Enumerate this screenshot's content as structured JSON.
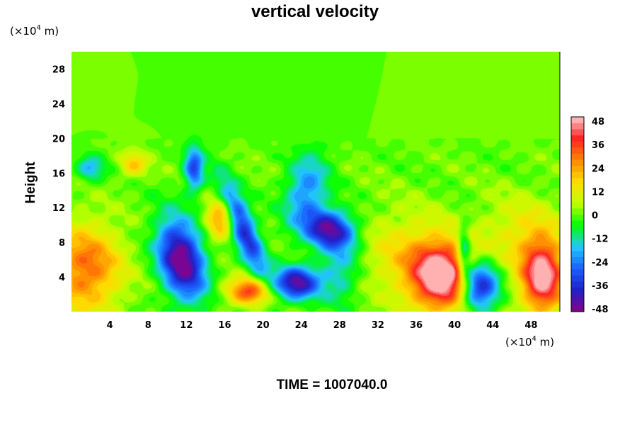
{
  "chart_data": {
    "type": "heatmap",
    "title": "vertical velocity",
    "ylabel": "Height",
    "xlabel": "",
    "x_unit": {
      "text": "(×10",
      "exp": "4",
      "tail": " m)"
    },
    "y_unit": {
      "text": "(×10",
      "exp": "4",
      "tail": " m)"
    },
    "xlim": [
      0,
      51
    ],
    "ylim": [
      0,
      30
    ],
    "x_ticks": [
      4,
      8,
      12,
      16,
      20,
      24,
      28,
      32,
      36,
      40,
      44,
      48
    ],
    "y_ticks": [
      4,
      8,
      12,
      16,
      20,
      24,
      28
    ],
    "colorbar": {
      "range": [
        -48,
        48
      ],
      "ticks": [
        48,
        36,
        24,
        12,
        0,
        -12,
        -24,
        -36,
        -48
      ],
      "colormap": [
        "#8a008a",
        "#2020c8",
        "#1a60ff",
        "#20c8ff",
        "#00ff00",
        "#c0ff00",
        "#ffdd00",
        "#ff8800",
        "#ff2222",
        "#ffc8c8"
      ]
    },
    "background_value": 0,
    "features": [
      {
        "x": 11.5,
        "y": 6.0,
        "sx": 1.6,
        "sy": 3.2,
        "value": -50,
        "rot": -12
      },
      {
        "x": 12.8,
        "y": 16.5,
        "sx": 0.7,
        "sy": 1.8,
        "value": -30,
        "rot": 0
      },
      {
        "x": 18.0,
        "y": 9.5,
        "sx": 0.9,
        "sy": 4.0,
        "value": -36,
        "rot": -20
      },
      {
        "x": 23.5,
        "y": 3.3,
        "sx": 1.6,
        "sy": 1.3,
        "value": -44,
        "rot": 0
      },
      {
        "x": 27.0,
        "y": 9.5,
        "sx": 1.9,
        "sy": 1.5,
        "value": -44,
        "rot": 25
      },
      {
        "x": 24.5,
        "y": 14.0,
        "sx": 1.5,
        "sy": 3.0,
        "value": -22,
        "rot": 10
      },
      {
        "x": 28.0,
        "y": 4.5,
        "sx": 1.5,
        "sy": 2.5,
        "value": -16,
        "rot": 0
      },
      {
        "x": 42.5,
        "y": 3.0,
        "sx": 1.4,
        "sy": 2.0,
        "value": -46,
        "rot": 0
      },
      {
        "x": 41.0,
        "y": 7.0,
        "sx": 0.5,
        "sy": 2.0,
        "value": -25,
        "rot": 0
      },
      {
        "x": 2.0,
        "y": 16.5,
        "sx": 1.0,
        "sy": 1.0,
        "value": -18,
        "rot": 0
      },
      {
        "x": 38.8,
        "y": 4.0,
        "sx": 2.3,
        "sy": 2.7,
        "value": 52,
        "rot": 0
      },
      {
        "x": 49.2,
        "y": 4.0,
        "sx": 1.6,
        "sy": 3.0,
        "value": 48,
        "rot": 0
      },
      {
        "x": 1.5,
        "y": 5.0,
        "sx": 2.6,
        "sy": 3.5,
        "value": 30,
        "rot": 0
      },
      {
        "x": 18.5,
        "y": 2.3,
        "sx": 1.6,
        "sy": 1.1,
        "value": 34,
        "rot": 0
      },
      {
        "x": 15.5,
        "y": 10.5,
        "sx": 1.0,
        "sy": 1.6,
        "value": 26,
        "rot": 0
      },
      {
        "x": 6.5,
        "y": 17.0,
        "sx": 1.0,
        "sy": 1.0,
        "value": 18,
        "rot": 0
      },
      {
        "x": 35.0,
        "y": 6.5,
        "sx": 3.5,
        "sy": 3.5,
        "value": 14,
        "rot": 0
      },
      {
        "x": 47.0,
        "y": 9.0,
        "sx": 3.0,
        "sy": 3.0,
        "value": 12,
        "rot": 0
      }
    ]
  },
  "footer": {
    "time_label": "TIME = 1007040.0"
  }
}
